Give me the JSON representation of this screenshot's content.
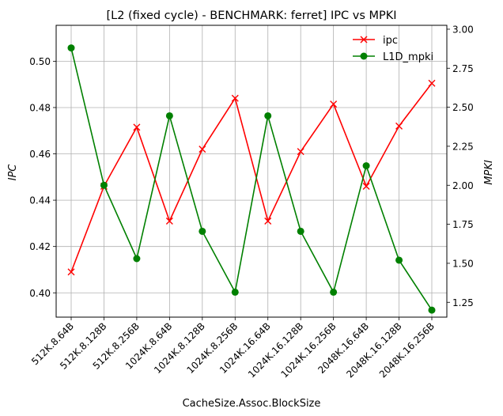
{
  "chart_data": {
    "type": "line",
    "title": "[L2 (fixed cycle) - BENCHMARK: ferret]  IPC vs MPKI",
    "xlabel": "CacheSize.Assoc.BlockSize",
    "ylabel_left": "IPC",
    "ylabel_right": "MPKI",
    "categories": [
      "512K.8.64B",
      "512K.8.128B",
      "512K.8.256B",
      "1024K.8.64B",
      "1024K.8.128B",
      "1024K.8.256B",
      "1024K.16.64B",
      "1024K.16.128B",
      "1024K.16.256B",
      "2048K.16.64B",
      "2048K.16.128B",
      "2048K.16.256B"
    ],
    "ylim_left": [
      0.3895,
      0.5155
    ],
    "ylim_right": [
      1.155,
      3.025
    ],
    "yticks_left": [
      "0.40",
      "0.42",
      "0.44",
      "0.46",
      "0.48",
      "0.50"
    ],
    "yticks_right": [
      "1.25",
      "1.50",
      "1.75",
      "2.00",
      "2.25",
      "2.50",
      "2.75",
      "3.00"
    ],
    "grid": true,
    "legend_position": "top-right",
    "series": [
      {
        "name": "ipc",
        "axis": "left",
        "color": "#ff0000",
        "marker": "x",
        "values": [
          0.409,
          0.446,
          0.4715,
          0.431,
          0.462,
          0.484,
          0.431,
          0.461,
          0.4815,
          0.446,
          0.472,
          0.4905
        ]
      },
      {
        "name": "L1D_mpki",
        "axis": "right",
        "color": "#008000",
        "marker": "o",
        "values": [
          2.88,
          2.0,
          1.53,
          2.445,
          1.705,
          1.315,
          2.445,
          1.705,
          1.315,
          2.125,
          1.52,
          1.2
        ]
      }
    ]
  }
}
